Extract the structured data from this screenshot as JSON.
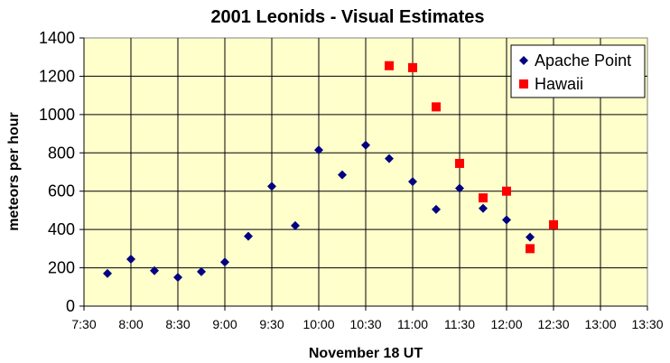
{
  "chart_data": {
    "type": "scatter",
    "title": "2001 Leonids - Visual Estimates",
    "xlabel": "November 18 UT",
    "ylabel": "meteors per hour",
    "xlim": [
      "7:30",
      "13:30"
    ],
    "ylim": [
      0,
      1400
    ],
    "x_ticks": [
      "7:30",
      "8:00",
      "8:30",
      "9:00",
      "9:30",
      "10:00",
      "10:30",
      "11:00",
      "11:30",
      "12:00",
      "12:30",
      "13:00",
      "13:30"
    ],
    "y_ticks": [
      "0",
      "200",
      "400",
      "600",
      "800",
      "1000",
      "1200",
      "1400"
    ],
    "grid": true,
    "legend_position": "top-right",
    "plot_background": "#ffffcc",
    "series": [
      {
        "name": "Apache Point",
        "marker": "diamond",
        "color": "#000080",
        "points": [
          {
            "x": "7:45",
            "y": 170
          },
          {
            "x": "8:00",
            "y": 245
          },
          {
            "x": "8:15",
            "y": 185
          },
          {
            "x": "8:30",
            "y": 150
          },
          {
            "x": "8:45",
            "y": 180
          },
          {
            "x": "9:00",
            "y": 230
          },
          {
            "x": "9:15",
            "y": 365
          },
          {
            "x": "9:30",
            "y": 625
          },
          {
            "x": "9:45",
            "y": 420
          },
          {
            "x": "10:00",
            "y": 815
          },
          {
            "x": "10:15",
            "y": 685
          },
          {
            "x": "10:30",
            "y": 840
          },
          {
            "x": "10:45",
            "y": 770
          },
          {
            "x": "11:00",
            "y": 650
          },
          {
            "x": "11:15",
            "y": 505
          },
          {
            "x": "11:30",
            "y": 615
          },
          {
            "x": "11:45",
            "y": 510
          },
          {
            "x": "12:00",
            "y": 450
          },
          {
            "x": "12:15",
            "y": 360
          }
        ]
      },
      {
        "name": "Hawaii",
        "marker": "square",
        "color": "#ff0000",
        "points": [
          {
            "x": "10:45",
            "y": 1255
          },
          {
            "x": "11:00",
            "y": 1245
          },
          {
            "x": "11:15",
            "y": 1040
          },
          {
            "x": "11:30",
            "y": 745
          },
          {
            "x": "11:45",
            "y": 565
          },
          {
            "x": "12:00",
            "y": 600
          },
          {
            "x": "12:15",
            "y": 300
          },
          {
            "x": "12:30",
            "y": 425
          }
        ]
      }
    ]
  }
}
